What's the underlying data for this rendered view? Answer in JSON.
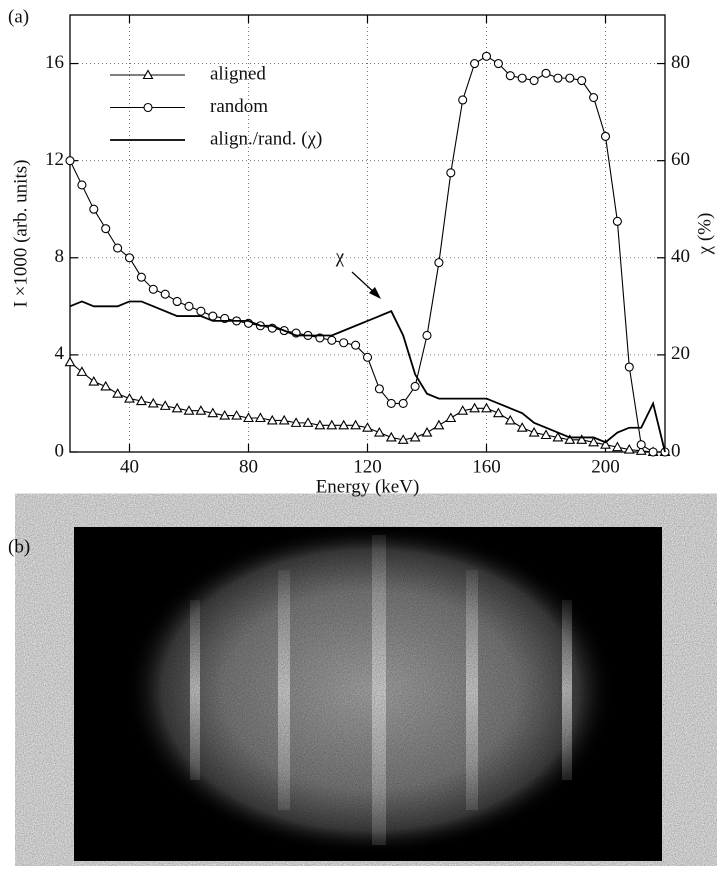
{
  "chart_data": {
    "type": "line",
    "panel_label": "(a)",
    "xlabel": "Energy (keV)",
    "ylabel": "I ×1000 (arb. units)",
    "y2label": "χ (%)",
    "annotation": "χ",
    "x": [
      20,
      24,
      28,
      32,
      36,
      40,
      44,
      48,
      52,
      56,
      60,
      64,
      68,
      72,
      76,
      80,
      84,
      88,
      92,
      96,
      100,
      104,
      108,
      112,
      116,
      120,
      124,
      128,
      132,
      136,
      140,
      144,
      148,
      152,
      156,
      160,
      164,
      168,
      172,
      176,
      180,
      184,
      188,
      192,
      196,
      200,
      204,
      208,
      212,
      216,
      220
    ],
    "series": [
      {
        "name": "aligned",
        "color": "#000000",
        "marker": "triangle",
        "values": [
          3.7,
          3.3,
          2.9,
          2.7,
          2.4,
          2.2,
          2.1,
          2.0,
          1.9,
          1.8,
          1.7,
          1.7,
          1.6,
          1.5,
          1.5,
          1.4,
          1.4,
          1.3,
          1.3,
          1.2,
          1.2,
          1.1,
          1.1,
          1.1,
          1.1,
          1.0,
          0.8,
          0.6,
          0.5,
          0.6,
          0.8,
          1.1,
          1.4,
          1.7,
          1.8,
          1.8,
          1.6,
          1.3,
          1.0,
          0.8,
          0.7,
          0.6,
          0.5,
          0.5,
          0.4,
          0.3,
          0.2,
          0.1,
          0.05,
          0,
          0
        ]
      },
      {
        "name": "random",
        "color": "#000000",
        "marker": "circle",
        "values": [
          12.0,
          11.0,
          10.0,
          9.2,
          8.4,
          8.0,
          7.2,
          6.7,
          6.5,
          6.2,
          6.0,
          5.8,
          5.6,
          5.5,
          5.4,
          5.3,
          5.2,
          5.1,
          5.0,
          4.9,
          4.8,
          4.7,
          4.6,
          4.5,
          4.4,
          3.9,
          2.6,
          2.0,
          2.0,
          2.7,
          4.8,
          7.8,
          11.5,
          14.5,
          16.0,
          16.3,
          16.0,
          15.5,
          15.4,
          15.3,
          15.6,
          15.4,
          15.4,
          15.3,
          14.6,
          13.0,
          9.5,
          3.5,
          0.3,
          0,
          0
        ]
      },
      {
        "name": "align./rand. (χ)",
        "color": "#000000",
        "marker": "none",
        "axis": "y2",
        "values": [
          30,
          31,
          30,
          30,
          30,
          31,
          31,
          30,
          29,
          28,
          28,
          28,
          27,
          27,
          27,
          27,
          26,
          26,
          25,
          24,
          24,
          24,
          24,
          25,
          26,
          27,
          28,
          29,
          24,
          16,
          12,
          11,
          11,
          11,
          11,
          11,
          10,
          9,
          8,
          6,
          5,
          4,
          3,
          3,
          3,
          2,
          4,
          5,
          5,
          10,
          0
        ]
      }
    ],
    "xlim": [
      20,
      220
    ],
    "xticks": [
      40,
      80,
      120,
      160,
      200
    ],
    "ylim": [
      0,
      18
    ],
    "yticks": [
      0,
      4,
      8,
      12,
      16
    ],
    "y2lim": [
      0,
      90
    ],
    "y2ticks": [
      0,
      20,
      40,
      60,
      80
    ],
    "grid": true,
    "legend": "upper left"
  },
  "image_panel": {
    "label": "(b)"
  }
}
